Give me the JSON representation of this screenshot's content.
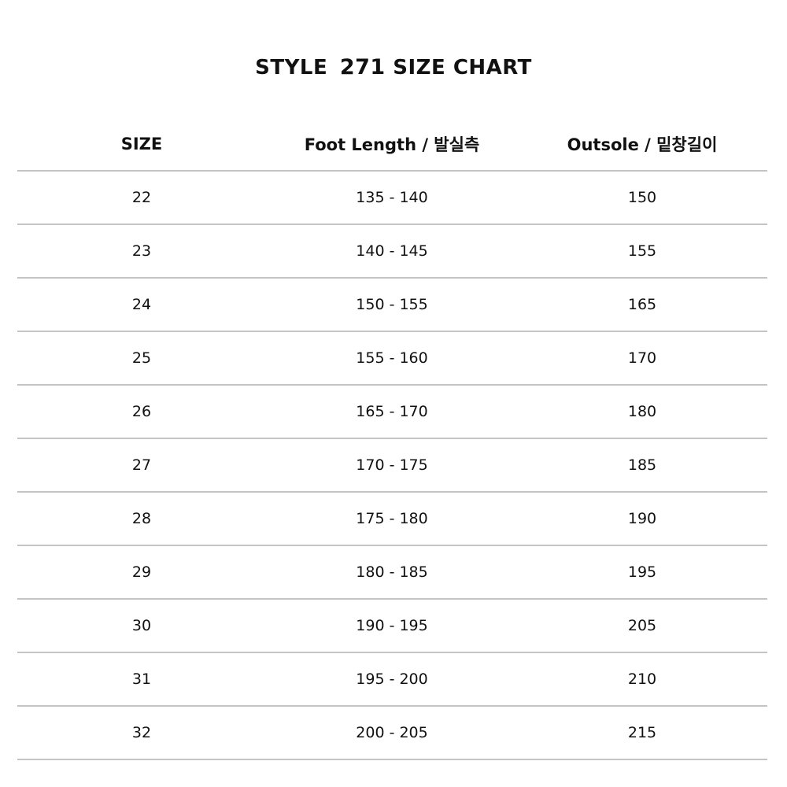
{
  "title": {
    "prefix": "STYLE",
    "style_number": "271",
    "suffix": "SIZE CHART"
  },
  "table": {
    "headers": [
      "SIZE",
      "Foot Length / 발실측",
      "Outsole / 밑창길이"
    ],
    "rows": [
      [
        "22",
        "135 - 140",
        "150"
      ],
      [
        "23",
        "140 - 145",
        "155"
      ],
      [
        "24",
        "150 - 155",
        "165"
      ],
      [
        "25",
        "155 - 160",
        "170"
      ],
      [
        "26",
        "165 - 170",
        "180"
      ],
      [
        "27",
        "170 - 175",
        "185"
      ],
      [
        "28",
        "175 - 180",
        "190"
      ],
      [
        "29",
        "180 - 185",
        "195"
      ],
      [
        "30",
        "190 - 195",
        "205"
      ],
      [
        "31",
        "195 - 200",
        "210"
      ],
      [
        "32",
        "200 - 205",
        "215"
      ]
    ]
  }
}
